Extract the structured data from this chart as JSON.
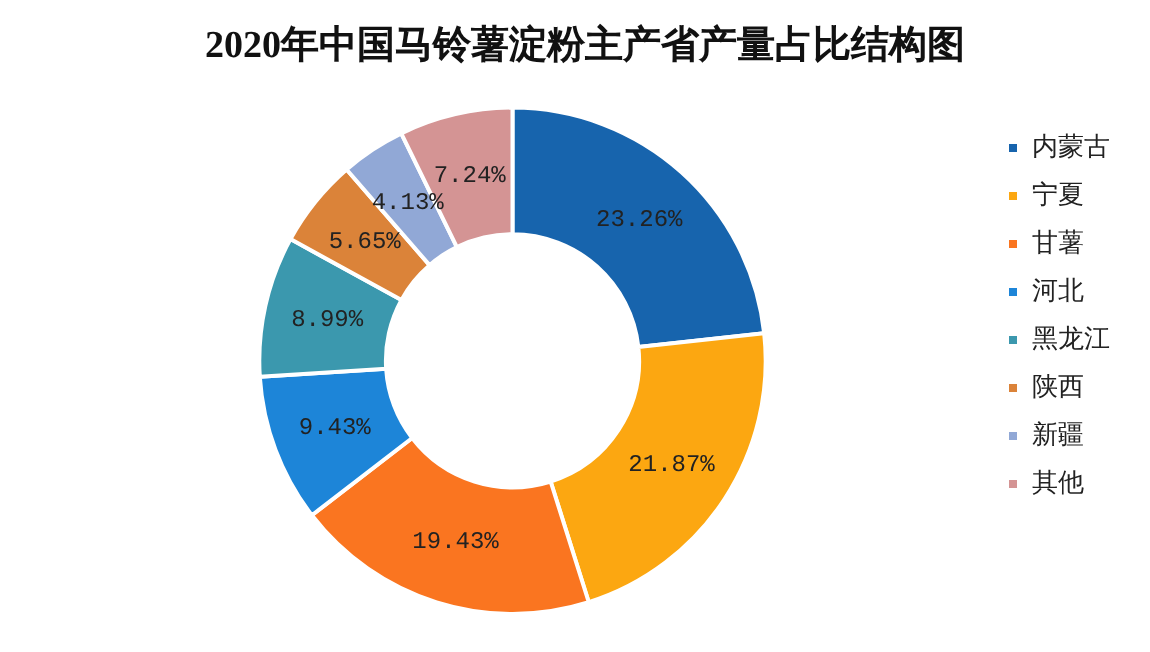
{
  "chart_data": {
    "type": "donut",
    "title": "2020年中国马铃薯淀粉主产省产量占比结构图",
    "categories": [
      "内蒙古",
      "宁夏",
      "甘薯",
      "河北",
      "黑龙江",
      "陕西",
      "新疆",
      "其他"
    ],
    "values": [
      23.26,
      21.87,
      19.43,
      9.43,
      8.99,
      5.65,
      4.13,
      7.24
    ],
    "colors": [
      "#1764ad",
      "#fca711",
      "#fa7520",
      "#1d85d8",
      "#3b98ae",
      "#db8339",
      "#91a8d6",
      "#d49494"
    ],
    "value_labels": [
      "23.26%",
      "21.87%",
      "19.43%",
      "9.43%",
      "8.99%",
      "5.65%",
      "4.13%",
      "7.24%"
    ],
    "legend": "right"
  }
}
